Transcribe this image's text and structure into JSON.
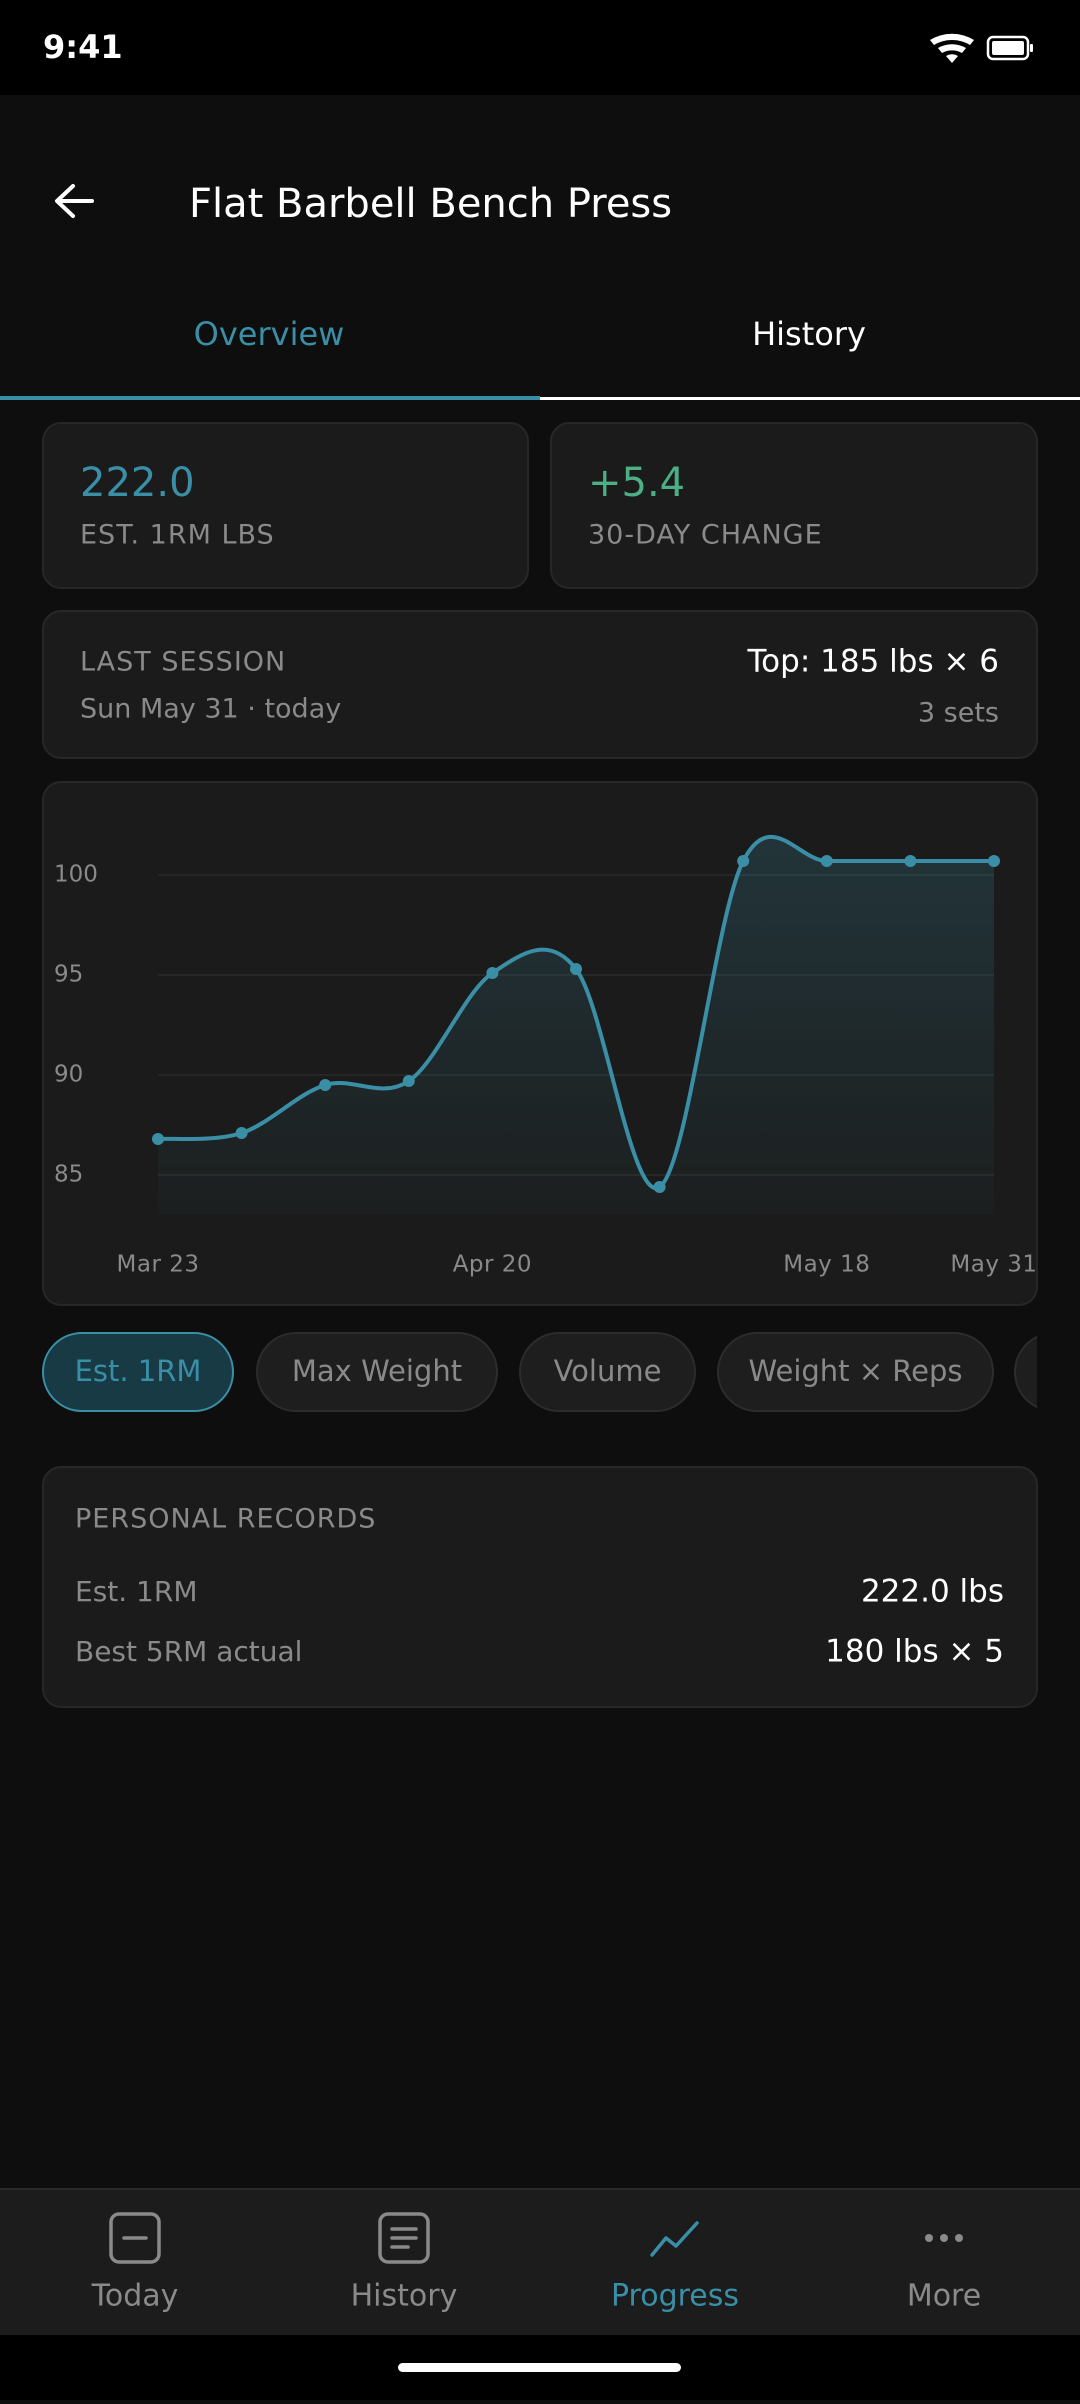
{
  "status_bar": {
    "time": "9:41"
  },
  "header": {
    "title": "Flat Barbell Bench Press"
  },
  "tabs": [
    "Overview",
    "History"
  ],
  "stats": [
    {
      "value": "222.0",
      "label": "EST. 1RM LBS"
    },
    {
      "value": "+5.4",
      "label": "30-DAY CHANGE"
    }
  ],
  "last_session": {
    "label": "LAST SESSION",
    "date": "Sun May 31 · today",
    "top": "Top: 185 lbs × 6",
    "sets": "3 sets"
  },
  "chart_data": {
    "type": "line",
    "categories": [
      "Mar 23",
      null,
      null,
      null,
      "Apr 20",
      null,
      null,
      null,
      "May 18",
      null,
      "May 31"
    ],
    "values": [
      86.8,
      87.1,
      89.5,
      89.7,
      95.1,
      95.3,
      84.4,
      100.7,
      100.7,
      100.7,
      100.7
    ],
    "color": "#3a8fa6",
    "ylim": [
      83,
      103
    ],
    "yticks": [
      85,
      90,
      95,
      100
    ],
    "grid": true
  },
  "metric_chips": [
    "Est. 1RM",
    "Max Weight",
    "Volume",
    "Weight × Reps"
  ],
  "personal_records": {
    "title": "PERSONAL RECORDS",
    "rows": [
      [
        "Est. 1RM",
        "222.0 lbs"
      ],
      [
        "Best 5RM actual",
        "180 lbs × 5"
      ]
    ]
  },
  "nav": [
    "Today",
    "History",
    "Progress",
    "More"
  ]
}
